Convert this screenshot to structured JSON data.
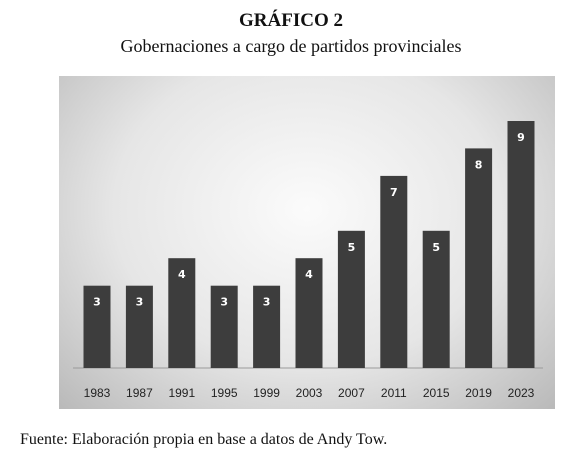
{
  "chart_data": {
    "type": "bar",
    "heading": "GRÁFICO 2",
    "title": "Gobernaciones a cargo de partidos provinciales",
    "categories": [
      "1983",
      "1987",
      "1991",
      "1995",
      "1999",
      "2003",
      "2007",
      "2011",
      "2015",
      "2019",
      "2023"
    ],
    "values": [
      3,
      3,
      4,
      3,
      3,
      4,
      5,
      7,
      5,
      8,
      9
    ],
    "xlabel": "",
    "ylabel": "",
    "ylim": [
      0,
      9
    ],
    "grid": false,
    "legend": "none",
    "bar_color": "#3d3d3d",
    "data_labels": true
  },
  "source": "Fuente: Elaboración propia en base a datos de Andy Tow."
}
